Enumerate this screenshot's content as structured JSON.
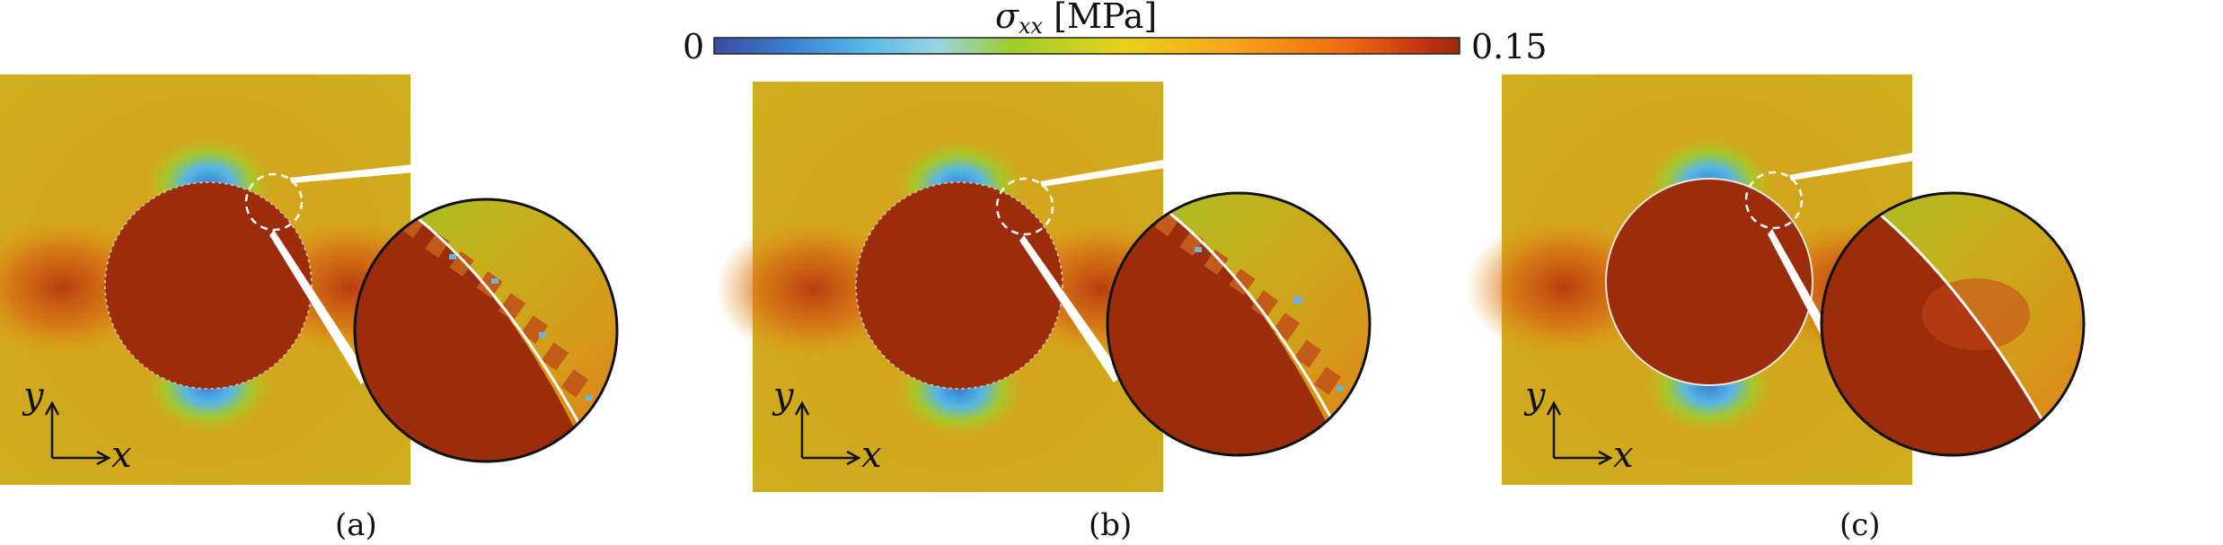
{
  "colorbar": {
    "symbol": "σ",
    "subscript": "xx",
    "unit": "[MPa]",
    "min_label": "0",
    "max_label": "0.15",
    "colors": [
      "#3b4b9e",
      "#3a7fd0",
      "#56b7e6",
      "#9ad3e3",
      "#9ecd2c",
      "#e9d21a",
      "#f6a21a",
      "#ee6a12",
      "#c23312",
      "#9b2a0f"
    ]
  },
  "panels": [
    {
      "caption": "(a)",
      "axis_x": "x",
      "axis_y": "y",
      "interface": "jagged"
    },
    {
      "caption": "(b)",
      "axis_x": "x",
      "axis_y": "y",
      "interface": "jagged"
    },
    {
      "caption": "(c)",
      "axis_x": "x",
      "axis_y": "y",
      "interface": "smooth"
    }
  ]
}
